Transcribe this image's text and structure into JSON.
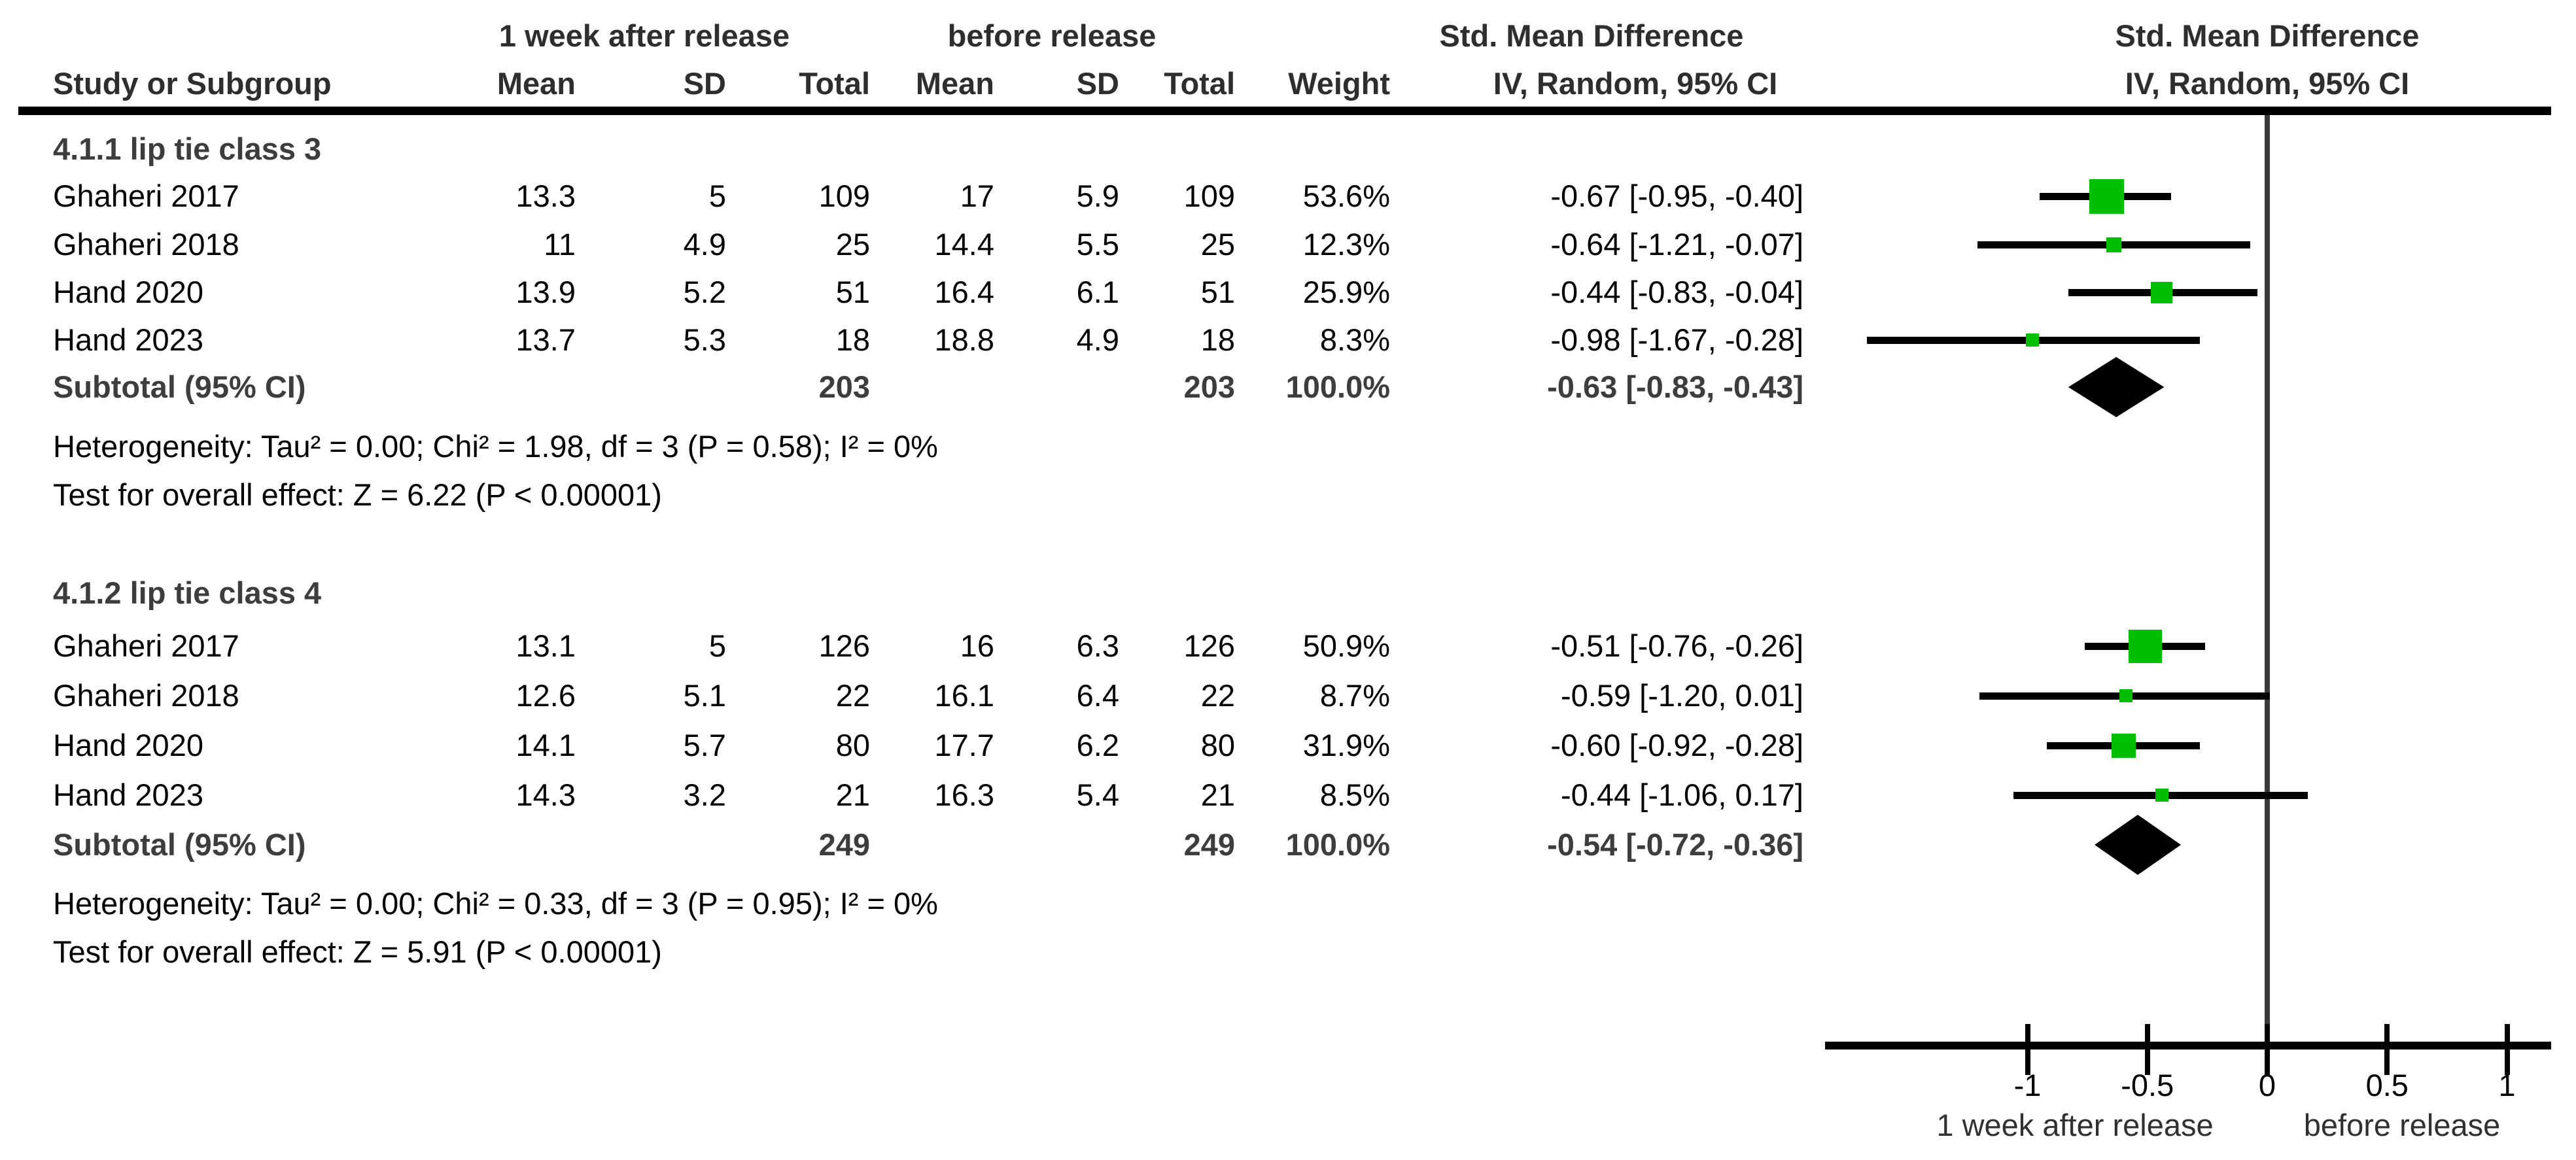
{
  "table": {
    "group1_header": "1 week after release",
    "group2_header": "before release",
    "smd_text_header_line1": "Std. Mean Difference",
    "smd_text_header_line2": "IV, Random, 95% CI",
    "smd_graph_header_line1": "Std. Mean Difference",
    "smd_graph_header_line2": "IV, Random, 95% CI",
    "col_headers": {
      "study": "Study or Subgroup",
      "mean1": "Mean",
      "sd1": "SD",
      "total1": "Total",
      "mean2": "Mean",
      "sd2": "SD",
      "total2": "Total",
      "weight": "Weight"
    }
  },
  "chart_data": {
    "type": "forest",
    "effect_measure": "Std. Mean Difference (IV, Random, 95% CI)",
    "x_axis": {
      "ticks": [
        -1,
        -0.5,
        0,
        0.5,
        1
      ],
      "tick_labels": [
        "-1",
        "-0.5",
        "0",
        "0.5",
        "1"
      ],
      "left_label": "1 week after release",
      "right_label": "before release"
    },
    "colors": {
      "square": "#00BE00",
      "diamond": "#000000",
      "ci_line": "#000000",
      "zero_line": "#3a3a3a"
    },
    "groups": [
      {
        "heading": "4.1.1 lip tie class 3",
        "studies": [
          {
            "study": "Ghaheri 2017",
            "mean1": "13.3",
            "sd1": "5",
            "total1": "109",
            "mean2": "17",
            "sd2": "5.9",
            "total2": "109",
            "weight": "53.6%",
            "weight_pct": 53.6,
            "ci_text": "-0.67 [-0.95, -0.40]",
            "effect": -0.67,
            "lo": -0.95,
            "hi": -0.4
          },
          {
            "study": "Ghaheri 2018",
            "mean1": "11",
            "sd1": "4.9",
            "total1": "25",
            "mean2": "14.4",
            "sd2": "5.5",
            "total2": "25",
            "weight": "12.3%",
            "weight_pct": 12.3,
            "ci_text": "-0.64 [-1.21, -0.07]",
            "effect": -0.64,
            "lo": -1.21,
            "hi": -0.07
          },
          {
            "study": "Hand 2020",
            "mean1": "13.9",
            "sd1": "5.2",
            "total1": "51",
            "mean2": "16.4",
            "sd2": "6.1",
            "total2": "51",
            "weight": "25.9%",
            "weight_pct": 25.9,
            "ci_text": "-0.44 [-0.83, -0.04]",
            "effect": -0.44,
            "lo": -0.83,
            "hi": -0.04
          },
          {
            "study": "Hand 2023",
            "mean1": "13.7",
            "sd1": "5.3",
            "total1": "18",
            "mean2": "18.8",
            "sd2": "4.9",
            "total2": "18",
            "weight": "8.3%",
            "weight_pct": 8.3,
            "ci_text": "-0.98 [-1.67, -0.28]",
            "effect": -0.98,
            "lo": -1.67,
            "hi": -0.28
          }
        ],
        "subtotal": {
          "label": "Subtotal (95% CI)",
          "total1": "203",
          "total2": "203",
          "weight": "100.0%",
          "ci_text": "-0.63 [-0.83, -0.43]",
          "effect": -0.63,
          "lo": -0.83,
          "hi": -0.43
        },
        "heterogeneity": "Heterogeneity: Tau² = 0.00; Chi² = 1.98, df = 3 (P = 0.58); I² = 0%",
        "overall_effect": "Test for overall effect: Z = 6.22 (P < 0.00001)"
      },
      {
        "heading": "4.1.2 lip tie class 4",
        "studies": [
          {
            "study": "Ghaheri 2017",
            "mean1": "13.1",
            "sd1": "5",
            "total1": "126",
            "mean2": "16",
            "sd2": "6.3",
            "total2": "126",
            "weight": "50.9%",
            "weight_pct": 50.9,
            "ci_text": "-0.51 [-0.76, -0.26]",
            "effect": -0.51,
            "lo": -0.76,
            "hi": -0.26
          },
          {
            "study": "Ghaheri 2018",
            "mean1": "12.6",
            "sd1": "5.1",
            "total1": "22",
            "mean2": "16.1",
            "sd2": "6.4",
            "total2": "22",
            "weight": "8.7%",
            "weight_pct": 8.7,
            "ci_text": "-0.59 [-1.20, 0.01]",
            "effect": -0.59,
            "lo": -1.2,
            "hi": 0.01
          },
          {
            "study": "Hand 2020",
            "mean1": "14.1",
            "sd1": "5.7",
            "total1": "80",
            "mean2": "17.7",
            "sd2": "6.2",
            "total2": "80",
            "weight": "31.9%",
            "weight_pct": 31.9,
            "ci_text": "-0.60 [-0.92, -0.28]",
            "effect": -0.6,
            "lo": -0.92,
            "hi": -0.28
          },
          {
            "study": "Hand 2023",
            "mean1": "14.3",
            "sd1": "3.2",
            "total1": "21",
            "mean2": "16.3",
            "sd2": "5.4",
            "total2": "21",
            "weight": "8.5%",
            "weight_pct": 8.5,
            "ci_text": "-0.44 [-1.06, 0.17]",
            "effect": -0.44,
            "lo": -1.06,
            "hi": 0.17
          }
        ],
        "subtotal": {
          "label": "Subtotal (95% CI)",
          "total1": "249",
          "total2": "249",
          "weight": "100.0%",
          "ci_text": "-0.54 [-0.72, -0.36]",
          "effect": -0.54,
          "lo": -0.72,
          "hi": -0.36
        },
        "heterogeneity": "Heterogeneity: Tau² = 0.00; Chi² = 0.33, df = 3 (P = 0.95); I² = 0%",
        "overall_effect": "Test for overall effect: Z = 5.91 (P < 0.00001)"
      }
    ]
  }
}
